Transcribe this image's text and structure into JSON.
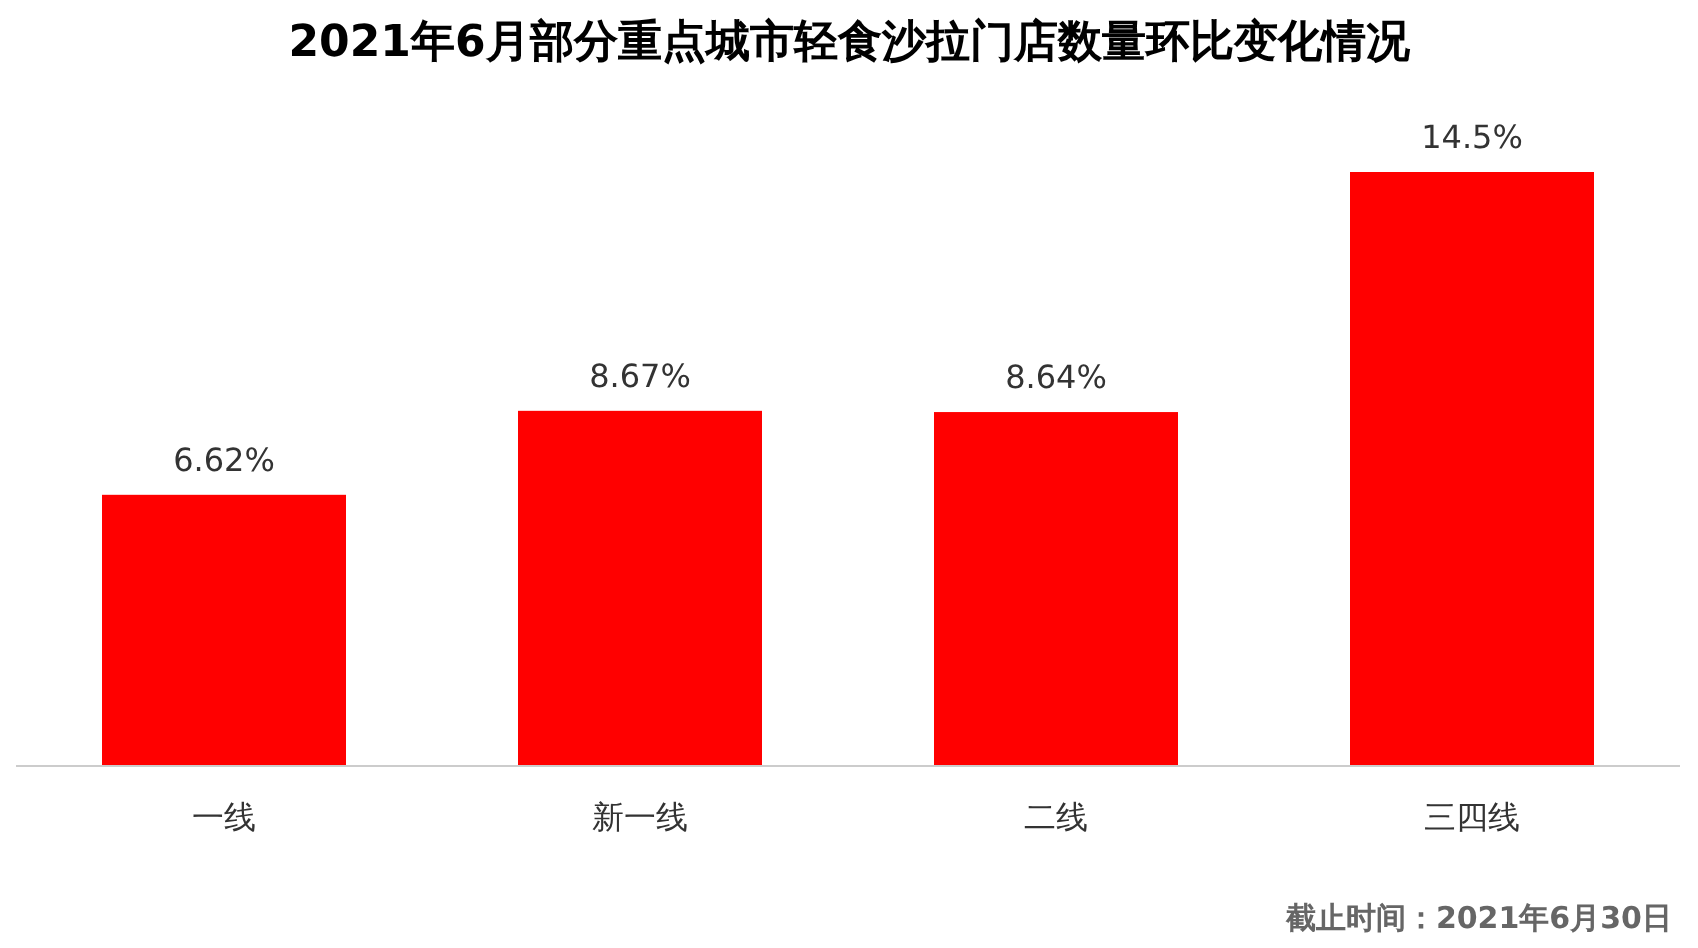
{
  "chart_data": {
    "type": "bar",
    "title": "2021年6月部分重点城市轻食沙拉门店数量环比变化情况",
    "categories": [
      "一线",
      "新一线",
      "二线",
      "三四线"
    ],
    "values": [
      6.62,
      8.67,
      8.64,
      14.5
    ],
    "value_labels": [
      "6.62%",
      "8.67%",
      "8.64%",
      "14.5%"
    ],
    "color": "#ff0000",
    "annotations": [
      "截止时间：2021年6月30日"
    ]
  }
}
